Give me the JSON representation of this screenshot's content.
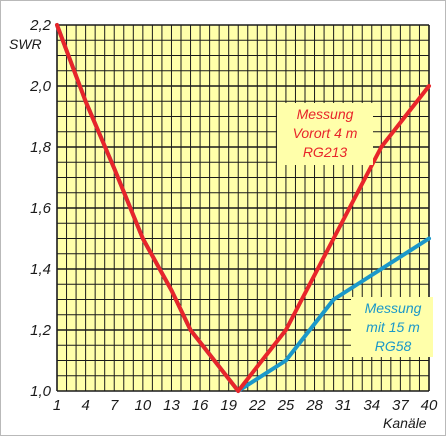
{
  "chart_data": {
    "type": "line",
    "xlabel": "Kanäle",
    "ylabel": "SWR",
    "xlim": [
      1,
      40
    ],
    "ylim": [
      1.0,
      2.2
    ],
    "x_ticks": [
      "1",
      "4",
      "7",
      "10",
      "13",
      "16",
      "19",
      "22",
      "25",
      "28",
      "31",
      "34",
      "37",
      "40"
    ],
    "y_ticks": [
      "1,0",
      "1,2",
      "1,4",
      "1,6",
      "1,8",
      "2,0",
      "2,2"
    ],
    "grid": true,
    "colors": {
      "background": "#ffffaa",
      "grid": "#1a1a1a",
      "series_rg213": "#e8252a",
      "series_rg58": "#1b98c9"
    },
    "series": [
      {
        "name": "Messung Vorort 4 m RG213",
        "label_lines": [
          "Messung",
          "Vorort 4 m",
          "RG213"
        ],
        "color": "#e8252a",
        "points": [
          [
            1,
            2.2
          ],
          [
            4,
            1.95
          ],
          [
            7,
            1.73
          ],
          [
            10,
            1.5
          ],
          [
            13,
            1.33
          ],
          [
            15,
            1.2
          ],
          [
            20,
            1.0
          ],
          [
            25,
            1.2
          ],
          [
            30,
            1.5
          ],
          [
            35,
            1.8
          ],
          [
            40,
            2.0
          ]
        ]
      },
      {
        "name": "Messung mit 15 m RG58",
        "label_lines": [
          "Messung",
          "mit 15 m",
          "RG58"
        ],
        "color": "#1b98c9",
        "points": [
          [
            1,
            2.2
          ],
          [
            4,
            1.95
          ],
          [
            7,
            1.73
          ],
          [
            10,
            1.5
          ],
          [
            13,
            1.33
          ],
          [
            15,
            1.2
          ],
          [
            20,
            1.0
          ],
          [
            25,
            1.1
          ],
          [
            30,
            1.3
          ],
          [
            35,
            1.4
          ],
          [
            40,
            1.5
          ]
        ]
      }
    ]
  }
}
